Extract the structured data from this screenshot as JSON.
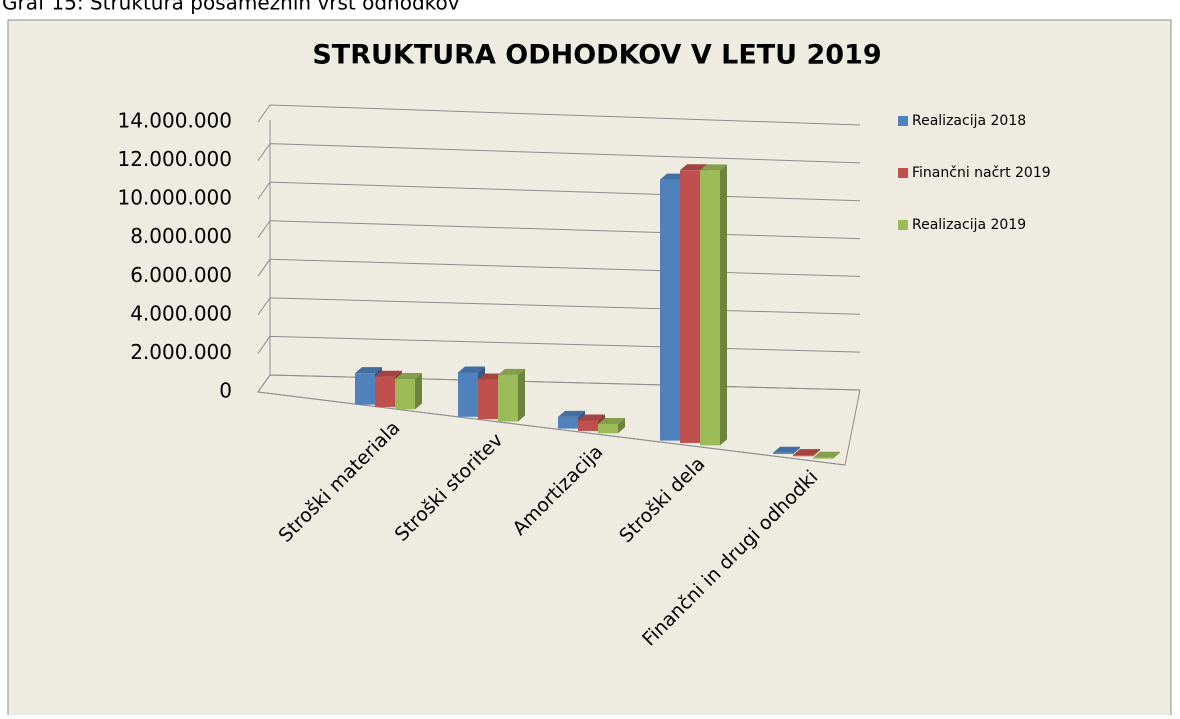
{
  "caption": "Graf 15: Struktura posameznih vrst odhodkov",
  "chart_data": {
    "type": "bar3d",
    "title": "STRUKTURA ODHODKOV V LETU 2019",
    "categories": [
      "Stroški materiala",
      "Stroški storitev",
      "Amortizacija",
      "Stroški dela",
      "Finančni in drugi odhodki"
    ],
    "series": [
      {
        "name": "Realizacija 2018",
        "color": "#4f81bd",
        "values": [
          1350000,
          1900000,
          500000,
          11200000,
          50000
        ]
      },
      {
        "name": "Finančni načrt 2019",
        "color": "#c0504d",
        "values": [
          1300000,
          1700000,
          450000,
          11700000,
          50000
        ]
      },
      {
        "name": "Realizacija 2019",
        "color": "#9bbb59",
        "values": [
          1300000,
          2000000,
          400000,
          11800000,
          40000
        ]
      }
    ],
    "ylim": [
      0,
      14000000
    ],
    "yticks": [
      0,
      {
        "value": 2000000,
        "label": "2.000.000"
      },
      {
        "value": 4000000,
        "label": "4.000.000"
      },
      {
        "value": 6000000,
        "label": "6.000.000"
      },
      {
        "value": 8000000,
        "label": "8.000.000"
      },
      {
        "value": 10000000,
        "label": "10.000.000"
      },
      {
        "value": 12000000,
        "label": "12.000.000"
      },
      {
        "value": 14000000,
        "label": "14.000.000"
      }
    ],
    "grid": true,
    "legend": "right"
  }
}
